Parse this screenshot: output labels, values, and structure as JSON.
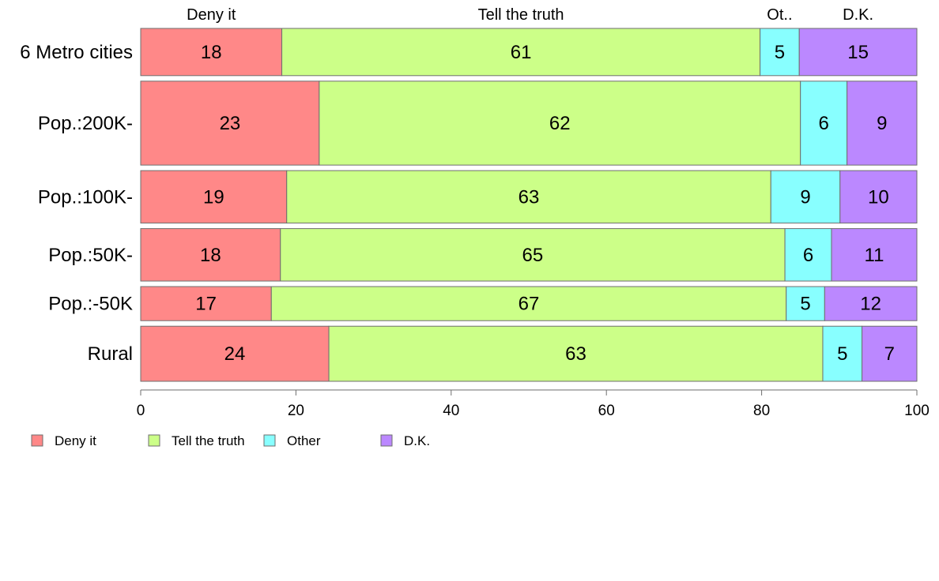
{
  "chart_data": {
    "type": "bar",
    "orientation": "horizontal",
    "stacked": true,
    "title": "",
    "xlabel": "",
    "ylabel": "",
    "xlim": [
      0,
      100
    ],
    "x_ticks": [
      0,
      20,
      40,
      60,
      80,
      100
    ],
    "grid": false,
    "legend_position": "bottom-left",
    "categories": [
      "6 Metro cities",
      "Pop.:200K-",
      "Pop.:100K-",
      "Pop.:50K-",
      "Pop.:-50K",
      "Rural"
    ],
    "series": [
      {
        "name": "Deny it",
        "top_label": "Deny it",
        "color": "#ff8888",
        "values": [
          18,
          23,
          19,
          18,
          17,
          24
        ]
      },
      {
        "name": "Tell the truth",
        "top_label": "Tell the truth",
        "color": "#ccff88",
        "values": [
          61,
          62,
          63,
          65,
          67,
          63
        ]
      },
      {
        "name": "Other",
        "top_label": "Ot..",
        "color": "#88ffff",
        "values": [
          5,
          6,
          9,
          6,
          5,
          5
        ]
      },
      {
        "name": "D.K.",
        "top_label": "D.K.",
        "color": "#bb88ff",
        "values": [
          15,
          9,
          10,
          11,
          12,
          7
        ]
      }
    ],
    "row_weights": [
      0.9,
      1.6,
      1.0,
      1.0,
      0.65,
      1.05
    ]
  }
}
